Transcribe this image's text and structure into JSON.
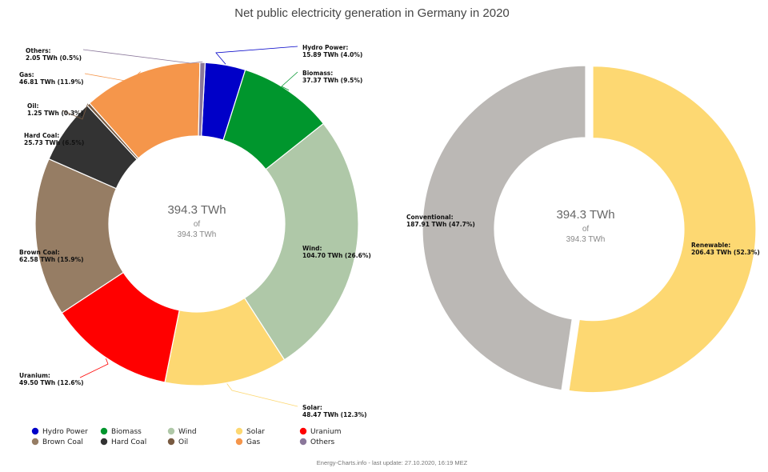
{
  "chart_data": [
    {
      "type": "pie",
      "donut": true,
      "title": "Net public electricity generation in Germany in 2020",
      "center_value": "394.3 TWh",
      "center_of": "of",
      "center_total": "394.3 TWh",
      "slices": [
        {
          "name": "Hydro Power",
          "value": 15.89,
          "value_label": "15.89 TWh (4.0%)",
          "color": "#0000c8"
        },
        {
          "name": "Biomass",
          "value": 37.37,
          "value_label": "37.37 TWh (9.5%)",
          "color": "#00962d"
        },
        {
          "name": "Wind",
          "value": 104.7,
          "value_label": "104.70 TWh (26.6%)",
          "color": "#afc8a8"
        },
        {
          "name": "Solar",
          "value": 48.47,
          "value_label": "48.47 TWh (12.3%)",
          "color": "#fdd872"
        },
        {
          "name": "Uranium",
          "value": 49.5,
          "value_label": "49.50 TWh (12.6%)",
          "color": "#ff0000"
        },
        {
          "name": "Brown Coal",
          "value": 62.58,
          "value_label": "62.58 TWh (15.9%)",
          "color": "#967d64"
        },
        {
          "name": "Hard Coal",
          "value": 25.73,
          "value_label": "25.73 TWh (6.5%)",
          "color": "#333333"
        },
        {
          "name": "Oil",
          "value": 1.25,
          "value_label": "1.25 TWh (0.3%)",
          "color": "#785a41"
        },
        {
          "name": "Gas",
          "value": 46.81,
          "value_label": "46.81 TWh (11.9%)",
          "color": "#f5964b"
        },
        {
          "name": "Others",
          "value": 2.05,
          "value_label": "2.05 TWh (0.5%)",
          "color": "#8a779a"
        }
      ]
    },
    {
      "type": "pie",
      "donut": true,
      "center_value": "394.3 TWh",
      "center_of": "of",
      "center_total": "394.3 TWh",
      "slices": [
        {
          "name": "Renewable",
          "value": 206.43,
          "value_label": "206.43 TWh (52.3%)",
          "color": "#fdd872"
        },
        {
          "name": "Conventional",
          "value": 187.91,
          "value_label": "187.91 TWh (47.7%)",
          "color": "#bbb8b5"
        }
      ]
    }
  ],
  "legend": [
    {
      "name": "Hydro Power",
      "color": "#0000c8"
    },
    {
      "name": "Biomass",
      "color": "#00962d"
    },
    {
      "name": "Wind",
      "color": "#afc8a8"
    },
    {
      "name": "Solar",
      "color": "#fdd872"
    },
    {
      "name": "Uranium",
      "color": "#ff0000"
    },
    {
      "name": "Brown Coal",
      "color": "#967d64"
    },
    {
      "name": "Hard Coal",
      "color": "#333333"
    },
    {
      "name": "Oil",
      "color": "#785a41"
    },
    {
      "name": "Gas",
      "color": "#f5964b"
    },
    {
      "name": "Others",
      "color": "#8a779a"
    }
  ],
  "footer": "Energy-Charts.info - last update: 27.10.2020, 16:19 MEZ"
}
